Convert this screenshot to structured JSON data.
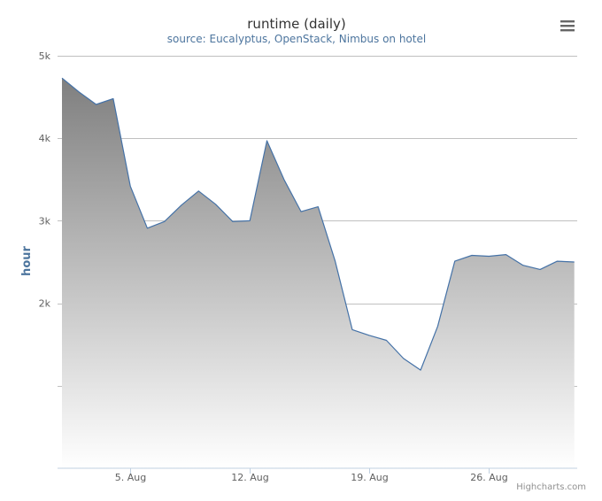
{
  "menu_icon": "hamburger-menu-icon",
  "credits": "Highcharts.com",
  "chart_data": {
    "type": "area",
    "title": "runtime (daily)",
    "subtitle": "source: Eucalyptus, OpenStack, Nimbus on hotel",
    "ylabel": "hour",
    "xlabel": "",
    "x_start": "1. Aug",
    "x_end": "31. Aug",
    "xticks": [
      {
        "day": 5,
        "label": "5. Aug"
      },
      {
        "day": 12,
        "label": "12. Aug"
      },
      {
        "day": 19,
        "label": "19. Aug"
      },
      {
        "day": 26,
        "label": "26. Aug"
      }
    ],
    "yticks": [
      {
        "value": 2000,
        "label": "2k"
      },
      {
        "value": 3000,
        "label": "3k"
      },
      {
        "value": 4000,
        "label": "4k"
      },
      {
        "value": 5000,
        "label": "5k"
      }
    ],
    "ylim": [
      0,
      5000
    ],
    "grid": true,
    "colors": {
      "line": "#4572a7",
      "fill_top": "#7f7f7f",
      "fill_bottom": "#ffffff",
      "grid": "#c0c0c0",
      "axis": "#c0d0e0"
    },
    "series": [
      {
        "days": [
          1,
          2,
          3,
          4,
          5,
          6,
          7,
          8,
          9,
          10,
          11,
          12,
          13,
          14,
          15,
          16,
          17,
          18,
          19,
          20,
          21,
          22,
          23,
          24,
          25,
          26,
          27,
          28,
          29,
          30,
          31
        ],
        "values": [
          4730,
          4560,
          4410,
          4480,
          3420,
          2910,
          2990,
          3190,
          3360,
          3200,
          2990,
          3000,
          3970,
          3500,
          3110,
          3170,
          2510,
          1680,
          1610,
          1550,
          1330,
          1190,
          1720,
          2510,
          2580,
          2570,
          2590,
          2460,
          2410,
          2510,
          2500
        ]
      }
    ]
  }
}
